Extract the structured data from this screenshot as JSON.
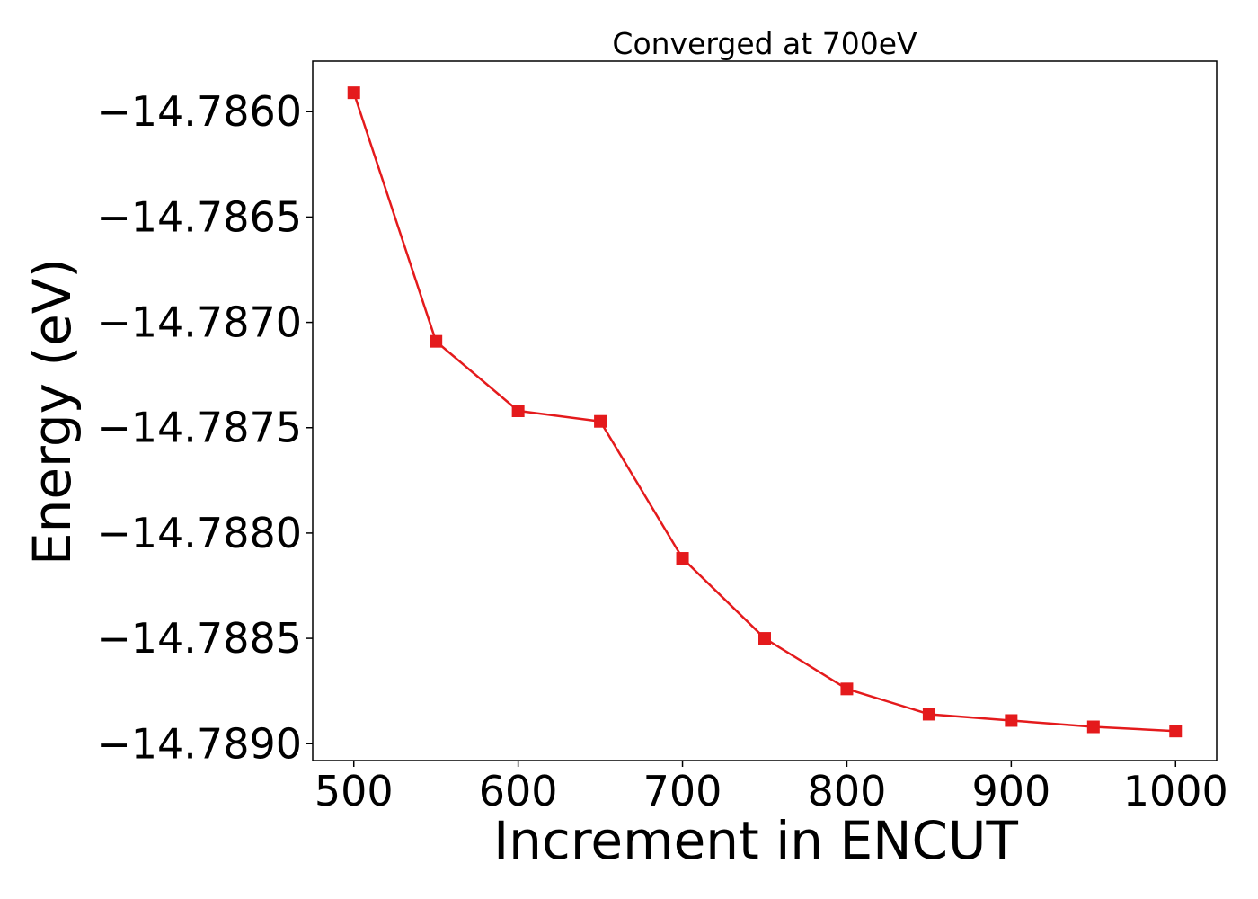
{
  "chart_data": {
    "type": "line",
    "title": "Converged at 700eV",
    "xlabel": "Increment in ENCUT",
    "ylabel": "Energy (eV)",
    "x": [
      500,
      550,
      600,
      650,
      700,
      750,
      800,
      850,
      900,
      950,
      1000
    ],
    "series": [
      {
        "name": "",
        "color": "#e41a1c",
        "marker": "square",
        "values": [
          -14.78591,
          -14.78709,
          -14.78742,
          -14.78747,
          -14.78812,
          -14.7885,
          -14.78874,
          -14.78886,
          -14.78889,
          -14.78892,
          -14.78894
        ]
      }
    ],
    "xlim": [
      475,
      1025
    ],
    "ylim": [
      -14.78908,
      -14.78576
    ],
    "xticks": [
      500,
      600,
      700,
      800,
      900,
      1000
    ],
    "xtick_labels": [
      "500",
      "600",
      "700",
      "800",
      "900",
      "1000"
    ],
    "yticks": [
      -14.786,
      -14.7865,
      -14.787,
      -14.7875,
      -14.788,
      -14.7885,
      -14.789
    ],
    "ytick_labels": [
      "−14.7860",
      "−14.7865",
      "−14.7870",
      "−14.7875",
      "−14.7880",
      "−14.7885",
      "−14.7890"
    ],
    "grid": false,
    "legend": "none"
  }
}
